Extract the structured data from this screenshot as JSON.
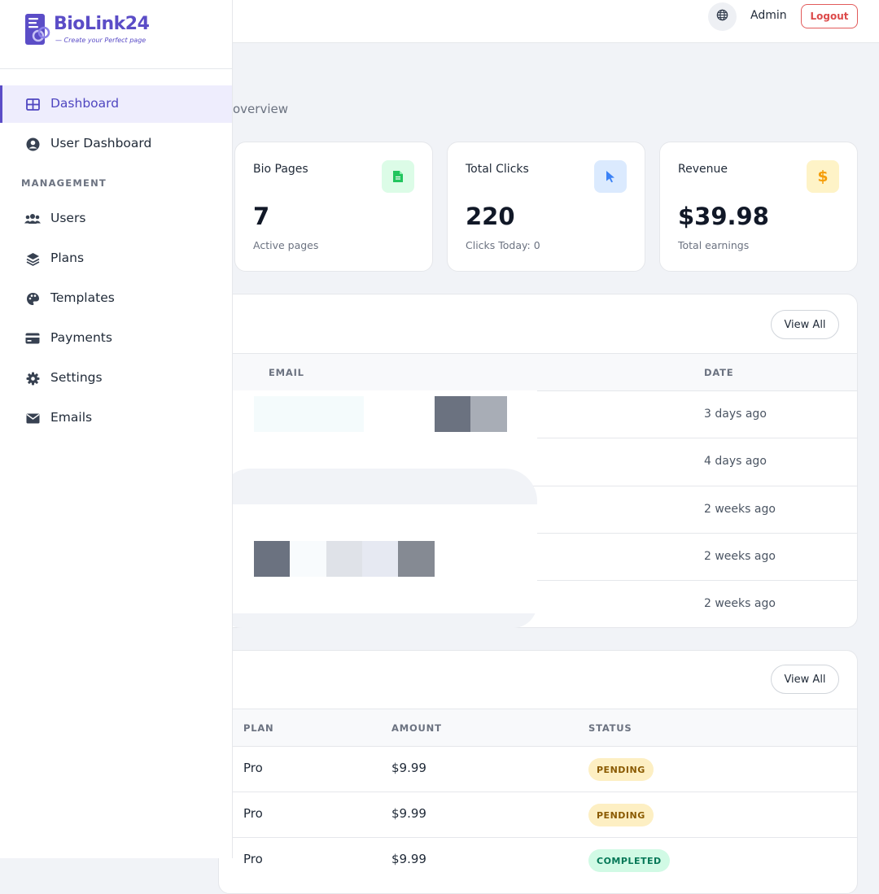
{
  "brand": {
    "name": "BioLink24",
    "tagline": "— Create your Perfect page",
    "accent": "#5b4dc7"
  },
  "header": {
    "lang_icon": "globe-icon",
    "user_name": "Admin",
    "logout_label": "Logout"
  },
  "sidebar": {
    "items": [
      {
        "label": "Dashboard",
        "icon": "dashboard-grid-icon",
        "active": true
      },
      {
        "label": "User Dashboard",
        "icon": "user-circle-icon",
        "active": false
      }
    ],
    "section_title": "MANAGEMENT",
    "management_items": [
      {
        "label": "Users",
        "icon": "users-icon"
      },
      {
        "label": "Plans",
        "icon": "layers-icon"
      },
      {
        "label": "Templates",
        "icon": "palette-icon"
      },
      {
        "label": "Payments",
        "icon": "credit-card-icon"
      },
      {
        "label": "Settings",
        "icon": "gear-icon"
      },
      {
        "label": "Emails",
        "icon": "envelope-icon"
      }
    ]
  },
  "main": {
    "subtitle": "overview",
    "stats": [
      {
        "title": "Bio Pages",
        "value": "7",
        "sub": "Active pages",
        "icon": "file-icon",
        "color": "#22c55e"
      },
      {
        "title": "Total Clicks",
        "value": "220",
        "sub": "Clicks Today: 0",
        "icon": "cursor-icon",
        "color": "#3b82f6"
      },
      {
        "title": "Revenue",
        "value": "$39.98",
        "sub": "Total earnings",
        "icon": "dollar-icon",
        "color": "#f59e0b"
      }
    ],
    "users_panel": {
      "view_all_label": "View All",
      "columns": [
        "EMAIL",
        "DATE"
      ],
      "rows": [
        {
          "date": "3 days ago"
        },
        {
          "date": "4 days ago"
        },
        {
          "date": "2 weeks ago"
        },
        {
          "date": "2 weeks ago"
        },
        {
          "date": "2 weeks ago"
        }
      ]
    },
    "payments_panel": {
      "view_all_label": "View All",
      "columns": [
        "PLAN",
        "AMOUNT",
        "STATUS"
      ],
      "rows": [
        {
          "plan": "Pro",
          "amount": "$9.99",
          "status": "PENDING"
        },
        {
          "plan": "Pro",
          "amount": "$9.99",
          "status": "PENDING"
        },
        {
          "plan": "Pro",
          "amount": "$9.99",
          "status": "COMPLETED"
        }
      ]
    }
  }
}
